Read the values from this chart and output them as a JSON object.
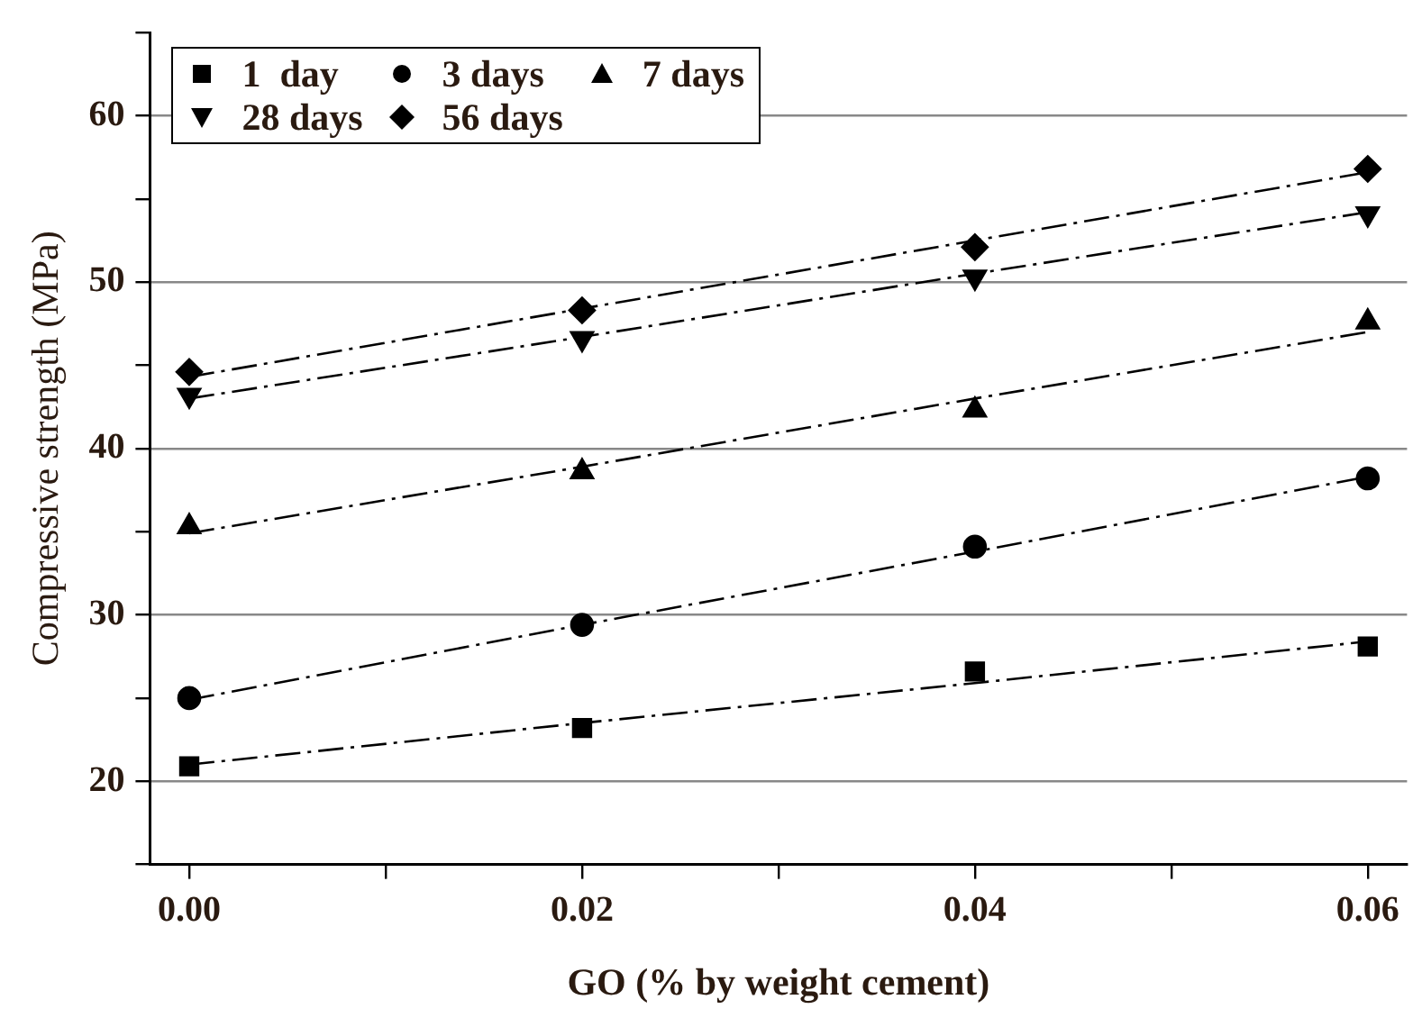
{
  "chart_data": {
    "type": "scatter",
    "xlabel": "GO (% by weight cement)",
    "ylabel": "Compressive strength (MPa)",
    "x": [
      0,
      0.02,
      0.04,
      0.06
    ],
    "series": [
      {
        "name": "1  day",
        "color": "#000000",
        "marker": "square",
        "values": [
          20.9,
          23.2,
          26.6,
          28.1
        ]
      },
      {
        "name": "3 days",
        "color": "#000000",
        "marker": "circle",
        "values": [
          25.0,
          29.4,
          34.1,
          38.2
        ]
      },
      {
        "name": "7 days",
        "color": "#000000",
        "marker": "triangle",
        "values": [
          35.3,
          38.6,
          42.3,
          47.6
        ]
      },
      {
        "name": "28 days",
        "color": "#000000",
        "marker": "triangle-down",
        "values": [
          43.2,
          46.6,
          50.3,
          54.1
        ]
      },
      {
        "name": "56 days",
        "color": "#000000",
        "marker": "diamond",
        "values": [
          44.6,
          48.3,
          52.1,
          56.8
        ]
      },
      {
        "type": "line",
        "color": "#000000",
        "marker": "none",
        "line_style": "dashed",
        "values": [
          21.0,
          23.5,
          25.9,
          28.4
        ]
      },
      {
        "type": "line",
        "color": "#000000",
        "marker": "none",
        "line_style": "dashed",
        "values": [
          24.9,
          29.4,
          33.8,
          38.3
        ]
      },
      {
        "type": "line",
        "color": "#000000",
        "marker": "none",
        "line_style": "dashed",
        "values": [
          34.9,
          38.9,
          43.0,
          47.0
        ]
      },
      {
        "type": "line",
        "color": "#000000",
        "marker": "none",
        "line_style": "dashed",
        "values": [
          43.0,
          46.7,
          50.5,
          54.2
        ]
      },
      {
        "type": "line",
        "color": "#000000",
        "marker": "none",
        "line_style": "dashed",
        "values": [
          44.3,
          48.4,
          52.5,
          56.6
        ]
      }
    ],
    "xlim": [
      -0.002,
      0.062
    ],
    "ylim": [
      15,
      65
    ],
    "xticks": [
      {
        "value": 0,
        "label": "0.00"
      },
      {
        "value": 0.01,
        "label": null
      },
      {
        "value": 0.02,
        "label": "0.02"
      },
      {
        "value": 0.03,
        "label": null
      },
      {
        "value": 0.04,
        "label": "0.04"
      },
      {
        "value": 0.05,
        "label": null
      },
      {
        "value": 0.06,
        "label": "0.06"
      }
    ],
    "yticks": [
      {
        "value": 15,
        "label": null
      },
      20,
      {
        "value": 25,
        "label": null
      },
      30,
      {
        "value": 35,
        "label": null
      },
      40,
      {
        "value": 45,
        "label": null
      },
      50,
      {
        "value": 55,
        "label": null
      },
      60,
      {
        "value": 65,
        "label": null
      }
    ],
    "grid": "y",
    "legend": "top left"
  }
}
